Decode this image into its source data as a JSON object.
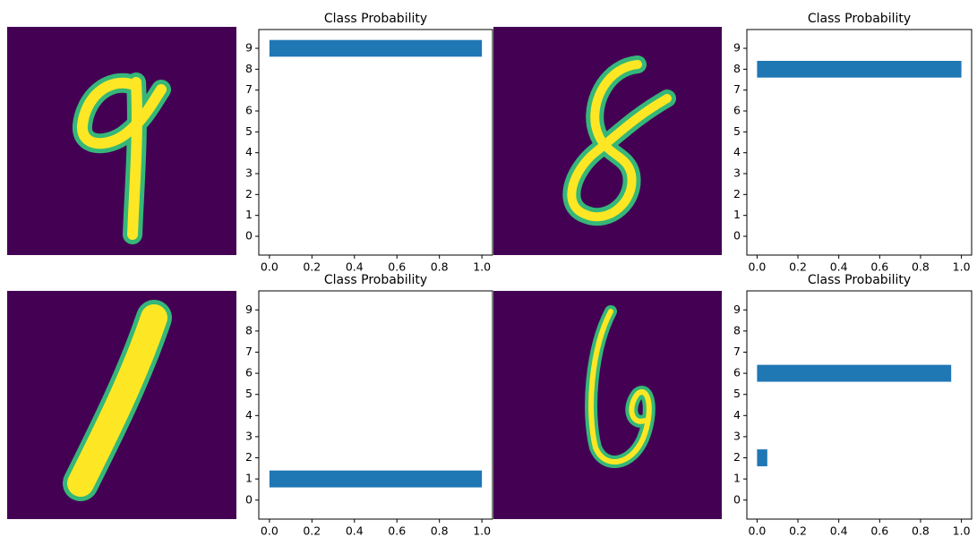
{
  "chart_data": [
    {
      "type": "barh",
      "title": "Class Probability",
      "categories": [
        "0",
        "1",
        "2",
        "3",
        "4",
        "5",
        "6",
        "7",
        "8",
        "9"
      ],
      "values": [
        0,
        0,
        0,
        0,
        0,
        0,
        0,
        0,
        0,
        1.0
      ],
      "color": "#1f77b4",
      "xlim": [
        -0.05,
        1.05
      ],
      "ylim": [
        -0.9,
        9.9
      ],
      "xticks": [
        {
          "value": 0,
          "label": "0.0"
        },
        0.2,
        0.4,
        0.6,
        0.8,
        {
          "value": 1,
          "label": "1.0"
        }
      ]
    },
    {
      "type": "barh",
      "title": "Class Probability",
      "categories": [
        "0",
        "1",
        "2",
        "3",
        "4",
        "5",
        "6",
        "7",
        "8",
        "9"
      ],
      "values": [
        0,
        0,
        0,
        0,
        0,
        0,
        0,
        0,
        1.0,
        0
      ],
      "color": "#1f77b4",
      "xlim": [
        -0.05,
        1.05
      ],
      "ylim": [
        -0.9,
        9.9
      ],
      "xticks": [
        {
          "value": 0,
          "label": "0.0"
        },
        0.2,
        0.4,
        0.6,
        0.8,
        {
          "value": 1,
          "label": "1.0"
        }
      ]
    },
    {
      "type": "barh",
      "title": "Class Probability",
      "categories": [
        "0",
        "1",
        "2",
        "3",
        "4",
        "5",
        "6",
        "7",
        "8",
        "9"
      ],
      "values": [
        0,
        1.0,
        0,
        0,
        0,
        0,
        0,
        0,
        0,
        0
      ],
      "color": "#1f77b4",
      "xlim": [
        -0.05,
        1.05
      ],
      "ylim": [
        -0.9,
        9.9
      ],
      "xticks": [
        {
          "value": 0,
          "label": "0.0"
        },
        0.2,
        0.4,
        0.6,
        0.8,
        {
          "value": 1,
          "label": "1.0"
        }
      ]
    },
    {
      "type": "barh",
      "title": "Class Probability",
      "categories": [
        "0",
        "1",
        "2",
        "3",
        "4",
        "5",
        "6",
        "7",
        "8",
        "9"
      ],
      "values": [
        0,
        0,
        0.05,
        0,
        0,
        0,
        0.95,
        0,
        0,
        0
      ],
      "color": "#1f77b4",
      "xlim": [
        -0.05,
        1.05
      ],
      "ylim": [
        -0.9,
        9.9
      ],
      "xticks": [
        {
          "value": 0,
          "label": "0.0"
        },
        0.2,
        0.4,
        0.6,
        0.8,
        {
          "value": 1,
          "label": "1.0"
        }
      ]
    }
  ]
}
